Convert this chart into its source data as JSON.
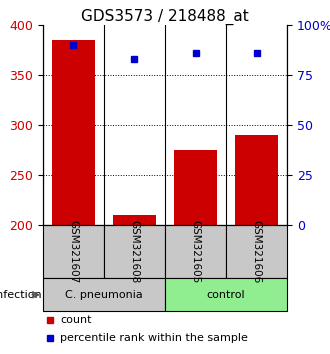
{
  "title": "GDS3573 / 218488_at",
  "samples": [
    "GSM321607",
    "GSM321608",
    "GSM321605",
    "GSM321606"
  ],
  "counts": [
    385,
    210,
    275,
    290
  ],
  "percentiles": [
    90,
    83,
    86,
    86
  ],
  "ylim_left": [
    200,
    400
  ],
  "ylim_right": [
    0,
    100
  ],
  "yticks_left": [
    200,
    250,
    300,
    350,
    400
  ],
  "yticks_right": [
    0,
    25,
    50,
    75,
    100
  ],
  "ytick_labels_right": [
    "0",
    "25",
    "50",
    "75",
    "100%"
  ],
  "bar_color": "#cc0000",
  "dot_color": "#0000cc",
  "bar_width": 0.7,
  "groups": [
    {
      "label": "C. pneumonia",
      "color": "#c8c8c8",
      "indices": [
        0,
        1
      ]
    },
    {
      "label": "control",
      "color": "#90ee90",
      "indices": [
        2,
        3
      ]
    }
  ],
  "infection_label": "infection",
  "legend_count_label": "count",
  "legend_pct_label": "percentile rank within the sample",
  "title_fontsize": 11,
  "tick_fontsize": 9,
  "sample_box_color": "#c8c8c8",
  "group_colors": [
    "#c8c8c8",
    "#90ee90"
  ],
  "dotted_lines": [
    250,
    300,
    350
  ],
  "figsize": [
    3.3,
    3.54
  ],
  "dpi": 100
}
